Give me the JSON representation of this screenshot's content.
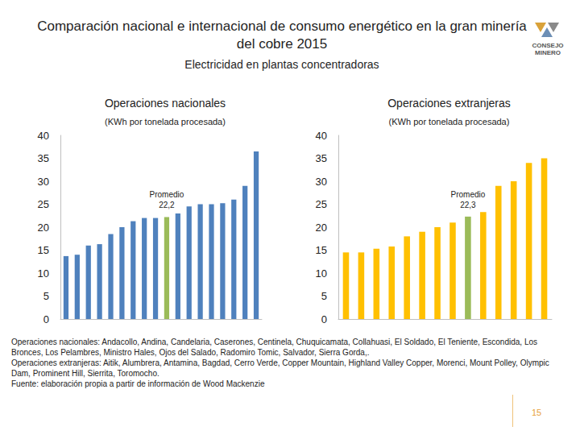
{
  "title": "Comparación nacional e internacional de consumo energético en la gran minería del cobre 2015",
  "subtitle": "Electricidad en plantas concentradoras",
  "logo_text": [
    "CONSEJO",
    "MINERO"
  ],
  "chart_data": [
    {
      "type": "bar",
      "title": "Operaciones nacionales",
      "subtitle": "(KWh por tonelada procesada)",
      "categories": [
        null,
        null,
        null,
        null,
        null,
        null,
        null,
        null,
        null,
        null,
        null,
        null,
        null,
        null,
        null,
        null,
        null,
        null
      ],
      "values": [
        13.7,
        14,
        16,
        16.3,
        18.5,
        20,
        21.3,
        22,
        22,
        22.2,
        23,
        24.5,
        25,
        25,
        25.2,
        26,
        29,
        36.5
      ],
      "colors": [
        "#4f81bd",
        "#4f81bd",
        "#4f81bd",
        "#4f81bd",
        "#4f81bd",
        "#4f81bd",
        "#4f81bd",
        "#4f81bd",
        "#4f81bd",
        "#9bbb59",
        "#4f81bd",
        "#4f81bd",
        "#4f81bd",
        "#4f81bd",
        "#4f81bd",
        "#4f81bd",
        "#4f81bd",
        "#4f81bd"
      ],
      "annotation": [
        "Promedio",
        "22,2"
      ],
      "ylim": [
        0,
        40
      ],
      "yticks": [
        0,
        5,
        10,
        15,
        20,
        25,
        30,
        35,
        40
      ],
      "grid": false,
      "tick_labels": "y"
    },
    {
      "type": "bar",
      "title": "Operaciones extranjeras",
      "subtitle": "(KWh por tonelada procesada)",
      "categories": [
        null,
        null,
        null,
        null,
        null,
        null,
        null,
        null,
        null,
        null,
        null,
        null,
        null,
        null
      ],
      "values": [
        14.5,
        14.5,
        15.3,
        15.8,
        18,
        19,
        20,
        21,
        22.3,
        23.3,
        29,
        30,
        34,
        35
      ],
      "colors": [
        "#ffc000",
        "#ffc000",
        "#ffc000",
        "#ffc000",
        "#ffc000",
        "#ffc000",
        "#ffc000",
        "#ffc000",
        "#9bbb59",
        "#ffc000",
        "#ffc000",
        "#ffc000",
        "#ffc000",
        "#ffc000"
      ],
      "annotation": [
        "Promedio",
        "22,3"
      ],
      "ylim": [
        0,
        40
      ],
      "yticks": [
        0,
        5,
        10,
        15,
        20,
        25,
        30,
        35,
        40
      ],
      "grid": false,
      "tick_labels": "y"
    }
  ],
  "notes": [
    "Operaciones nacionales: Andacollo, Andina, Candelaria, Caserones, Centinela, Chuquicamata, Collahuasi, El Soldado, El Teniente, Escondida, Los Bronces, Los Pelambres, Ministro Hales, Ojos del Salado, Radomiro Tomic, Salvador, Sierra Gorda,.",
    "Operaciones extranjeras: Aitik, Alumbrera, Antamina, Bagdad, Cerro Verde, Copper Mountain, Highland Valley Copper, Morenci, Mount Polley, Olympic Dam, Prominent Hill, Sierrita, Toromocho.",
    "Fuente: elaboración propia a partir de información de Wood Mackenzie"
  ],
  "page": 15
}
